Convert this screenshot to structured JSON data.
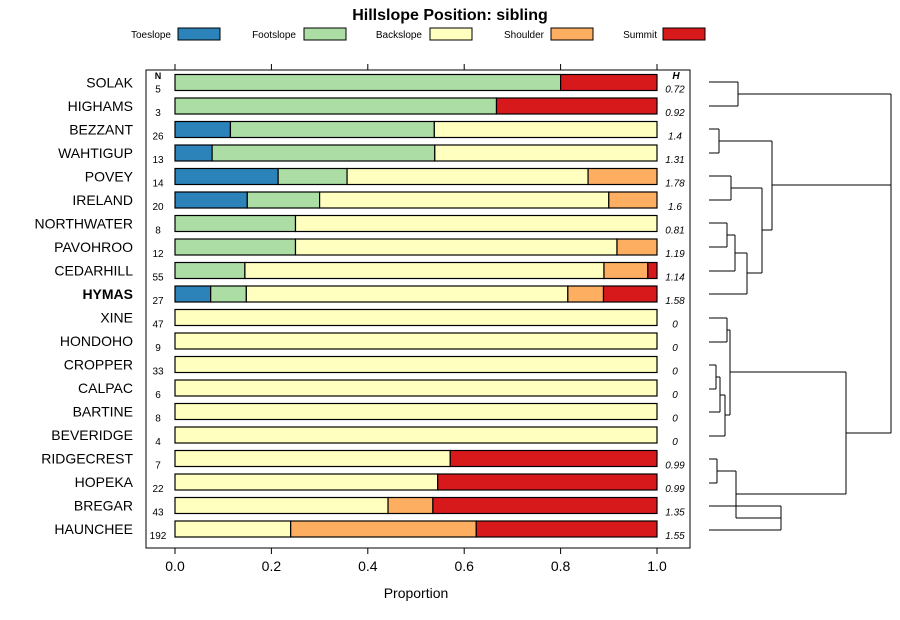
{
  "chart_data": {
    "type": "bar",
    "orientation": "horizontal",
    "stacked": true,
    "title": "Hillslope Position: sibling",
    "xlabel": "Proportion",
    "xlim": [
      0,
      1
    ],
    "xticks": [
      "0.0",
      "0.2",
      "0.4",
      "0.6",
      "0.8",
      "1.0"
    ],
    "n_header": "N",
    "h_header": "H",
    "highlight": "HYMAS",
    "legend": [
      {
        "name": "Toeslope",
        "color": "#2b83ba"
      },
      {
        "name": "Footslope",
        "color": "#abdda4"
      },
      {
        "name": "Backslope",
        "color": "#ffffbf"
      },
      {
        "name": "Shoulder",
        "color": "#fdae61"
      },
      {
        "name": "Summit",
        "color": "#d7191c"
      }
    ],
    "rows": [
      {
        "name": "SOLAK",
        "n": "5",
        "h": "0.72",
        "values": [
          0,
          0.8,
          0,
          0,
          0.2
        ]
      },
      {
        "name": "HIGHAMS",
        "n": "3",
        "h": "0.92",
        "values": [
          0,
          0.667,
          0,
          0,
          0.333
        ]
      },
      {
        "name": "BEZZANT",
        "n": "26",
        "h": "1.4",
        "values": [
          0.115,
          0.423,
          0.462,
          0,
          0
        ]
      },
      {
        "name": "WAHTIGUP",
        "n": "13",
        "h": "1.31",
        "values": [
          0.077,
          0.462,
          0.461,
          0,
          0
        ]
      },
      {
        "name": "POVEY",
        "n": "14",
        "h": "1.78",
        "values": [
          0.214,
          0.143,
          0.5,
          0.143,
          0
        ]
      },
      {
        "name": "IRELAND",
        "n": "20",
        "h": "1.6",
        "values": [
          0.15,
          0.15,
          0.6,
          0.1,
          0
        ]
      },
      {
        "name": "NORTHWATER",
        "n": "8",
        "h": "0.81",
        "values": [
          0,
          0.25,
          0.75,
          0,
          0
        ]
      },
      {
        "name": "PAVOHROO",
        "n": "12",
        "h": "1.19",
        "values": [
          0,
          0.25,
          0.667,
          0.083,
          0
        ]
      },
      {
        "name": "CEDARHILL",
        "n": "55",
        "h": "1.14",
        "values": [
          0,
          0.145,
          0.745,
          0.091,
          0.019
        ]
      },
      {
        "name": "HYMAS",
        "n": "27",
        "h": "1.58",
        "values": [
          0.074,
          0.074,
          0.667,
          0.074,
          0.111
        ]
      },
      {
        "name": "XINE",
        "n": "47",
        "h": "0",
        "values": [
          0,
          0,
          1,
          0,
          0
        ]
      },
      {
        "name": "HONDOHO",
        "n": "9",
        "h": "0",
        "values": [
          0,
          0,
          1,
          0,
          0
        ]
      },
      {
        "name": "CROPPER",
        "n": "33",
        "h": "0",
        "values": [
          0,
          0,
          1,
          0,
          0
        ]
      },
      {
        "name": "CALPAC",
        "n": "6",
        "h": "0",
        "values": [
          0,
          0,
          1,
          0,
          0
        ]
      },
      {
        "name": "BARTINE",
        "n": "8",
        "h": "0",
        "values": [
          0,
          0,
          1,
          0,
          0
        ]
      },
      {
        "name": "BEVERIDGE",
        "n": "4",
        "h": "0",
        "values": [
          0,
          0,
          1,
          0,
          0
        ]
      },
      {
        "name": "RIDGECREST",
        "n": "7",
        "h": "0.99",
        "values": [
          0,
          0,
          0.571,
          0,
          0.429
        ]
      },
      {
        "name": "HOPEKA",
        "n": "22",
        "h": "0.99",
        "values": [
          0,
          0,
          0.545,
          0,
          0.455
        ]
      },
      {
        "name": "BREGAR",
        "n": "43",
        "h": "1.35",
        "values": [
          0,
          0,
          0.442,
          0.093,
          0.465
        ]
      },
      {
        "name": "HAUNCHEE",
        "n": "192",
        "h": "1.55",
        "values": [
          0,
          0,
          0.24,
          0.385,
          0.375
        ]
      }
    ]
  }
}
